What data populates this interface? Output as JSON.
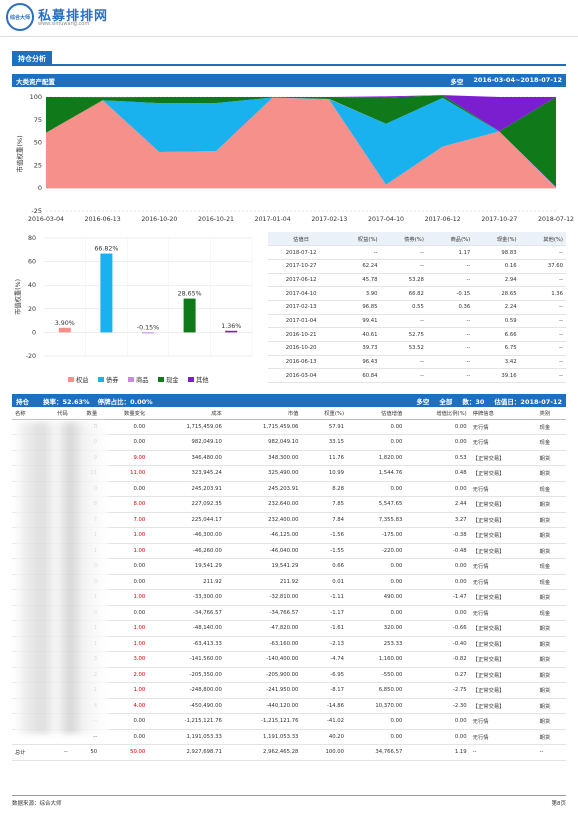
{
  "header": {
    "logo_text": "综合大师",
    "title": "私募排排网",
    "url": "www.simuwang.com"
  },
  "tab": {
    "label": "持仓分析"
  },
  "alloc": {
    "title": "大类资产配置",
    "mode": "多空",
    "range": "2016-03-04~2018-07-12"
  },
  "colors": {
    "equity": "#f5908a",
    "bond": "#1ab1ef",
    "commodity": "#c98be0",
    "cash": "#107a1a",
    "other": "#7a1ed0",
    "brand": "#1f6fbf"
  },
  "chart_data": [
    {
      "type": "area",
      "stacked": true,
      "x": [
        "2016-03-04",
        "2016-06-13",
        "2016-10-20",
        "2016-10-21",
        "2017-01-04",
        "2017-02-13",
        "2017-04-10",
        "2017-06-12",
        "2017-10-27",
        "2018-07-12"
      ],
      "series": [
        {
          "name": "权益",
          "values": [
            60.84,
            96.43,
            39.73,
            40.61,
            99.41,
            96.85,
            3.9,
            45.78,
            62.24,
            0
          ]
        },
        {
          "name": "债券",
          "values": [
            0,
            0,
            53.52,
            52.75,
            0,
            0.55,
            66.82,
            53.28,
            0,
            0
          ]
        },
        {
          "name": "商品",
          "values": [
            0,
            0,
            0,
            0,
            0,
            0.36,
            -0.15,
            0,
            0,
            1.17
          ]
        },
        {
          "name": "现金",
          "values": [
            39.16,
            3.42,
            6.75,
            6.66,
            0.59,
            2.24,
            28.65,
            2.94,
            0.16,
            98.83
          ]
        },
        {
          "name": "其他",
          "values": [
            0,
            0,
            0,
            0,
            0,
            0,
            1.36,
            0,
            37.6,
            0
          ]
        }
      ],
      "ylabel": "市值权重(%)",
      "ylim": [
        -25,
        100
      ],
      "yticks": [
        -25,
        0,
        25,
        50,
        75,
        100
      ]
    },
    {
      "type": "bar",
      "categories": [
        "权益",
        "债券",
        "商品",
        "现金",
        "其他"
      ],
      "values": [
        3.9,
        66.82,
        -0.15,
        28.65,
        1.36
      ],
      "labels": [
        "3.90%",
        "66.82%",
        "-0.15%",
        "28.65%",
        "1.36%"
      ],
      "ylabel": "市值权重(%)",
      "ylim": [
        -20,
        80
      ],
      "yticks": [
        -20,
        0,
        20,
        40,
        60,
        80
      ],
      "legend": "bottom"
    }
  ],
  "alloc_table": {
    "headers": [
      "估值日",
      "权益(%)",
      "债券(%)",
      "商品(%)",
      "现金(%)",
      "其他(%)"
    ],
    "rows": [
      [
        "2018-07-12",
        "--",
        "--",
        "1.17",
        "98.83",
        "--"
      ],
      [
        "2017-10-27",
        "62.24",
        "--",
        "--",
        "0.16",
        "37.60"
      ],
      [
        "2017-06-12",
        "45.78",
        "53.28",
        "--",
        "2.94",
        "--"
      ],
      [
        "2017-04-10",
        "3.90",
        "66.82",
        "-0.15",
        "28.65",
        "1.36"
      ],
      [
        "2017-02-13",
        "96.85",
        "0.55",
        "0.36",
        "2.24",
        "--"
      ],
      [
        "2017-01-04",
        "99.41",
        "--",
        "--",
        "0.59",
        "--"
      ],
      [
        "2016-10-21",
        "40.61",
        "52.75",
        "--",
        "6.66",
        "--"
      ],
      [
        "2016-10-20",
        "39.73",
        "53.52",
        "--",
        "6.75",
        "--"
      ],
      [
        "2016-06-13",
        "96.43",
        "--",
        "--",
        "3.42",
        "--"
      ],
      [
        "2016-03-04",
        "60.84",
        "--",
        "--",
        "39.16",
        "--"
      ]
    ]
  },
  "holdings": {
    "title": "持仓",
    "turnover": "换率：52.63%",
    "suspended": "停牌占比：0.00%",
    "mode": "多空",
    "scope": "全部",
    "count": "数：30",
    "date": "估值日：2018-07-12",
    "headers": [
      "名称",
      "代码",
      "数量",
      "数量变化",
      "成本",
      "市值",
      "权重(%)",
      "估值增值",
      "增值比例(%)",
      "停牌信息",
      "类别"
    ],
    "rows": [
      [
        "",
        "",
        "0",
        "0.00",
        "1,715,459.06",
        "1,715,459.06",
        "57.91",
        "0.00",
        "0.00",
        "无行情",
        "现金"
      ],
      [
        "",
        "",
        "0",
        "0.00",
        "982,049.10",
        "982,049.10",
        "33.15",
        "0.00",
        "0.00",
        "无行情",
        "现金"
      ],
      [
        "",
        "",
        "9",
        "9.00",
        "346,480.00",
        "348,300.00",
        "11.76",
        "1,820.00",
        "0.53",
        "【正常交易】",
        "期货"
      ],
      [
        "",
        "",
        "11",
        "11.00",
        "323,945.24",
        "325,490.00",
        "10.99",
        "1,544.76",
        "0.48",
        "【正常交易】",
        "期货"
      ],
      [
        "",
        "",
        "0",
        "0.00",
        "245,203.91",
        "245,203.91",
        "8.28",
        "0.00",
        "0.00",
        "无行情",
        "现金"
      ],
      [
        "",
        "",
        "8",
        "8.00",
        "227,092.35",
        "232,640.00",
        "7.85",
        "5,547.65",
        "2.44",
        "【正常交易】",
        "期货"
      ],
      [
        "",
        "",
        "7",
        "7.00",
        "225,044.17",
        "232,400.00",
        "7.84",
        "7,355.83",
        "3.27",
        "【正常交易】",
        "期货"
      ],
      [
        "",
        "",
        "1",
        "1.00",
        "-46,300.00",
        "-46,125.00",
        "-1.56",
        "-175.00",
        "-0.38",
        "【正常交易】",
        "期货"
      ],
      [
        "",
        "",
        "1",
        "1.00",
        "-46,260.00",
        "-46,040.00",
        "-1.55",
        "-220.00",
        "-0.48",
        "【正常交易】",
        "期货"
      ],
      [
        "",
        "",
        "0",
        "0.00",
        "19,541.29",
        "19,541.29",
        "0.66",
        "0.00",
        "0.00",
        "无行情",
        "现金"
      ],
      [
        "",
        "",
        "0",
        "0.00",
        "211.92",
        "211.92",
        "0.01",
        "0.00",
        "0.00",
        "无行情",
        "现金"
      ],
      [
        "",
        "",
        "1",
        "1.00",
        "-33,300.00",
        "-32,810.00",
        "-1.11",
        "490.00",
        "-1.47",
        "【正常交易】",
        "期货"
      ],
      [
        "",
        "",
        "0",
        "0.00",
        "-34,766.57",
        "-34,766.57",
        "-1.17",
        "0.00",
        "0.00",
        "无行情",
        "现金"
      ],
      [
        "",
        "",
        "1",
        "1.00",
        "-48,140.00",
        "-47,820.00",
        "-1.61",
        "320.00",
        "-0.66",
        "【正常交易】",
        "期货"
      ],
      [
        "",
        "",
        "1",
        "1.00",
        "-63,413.33",
        "-63,160.00",
        "-2.13",
        "253.33",
        "-0.40",
        "【正常交易】",
        "期货"
      ],
      [
        "",
        "",
        "3",
        "3.00",
        "-141,560.00",
        "-140,400.00",
        "-4.74",
        "1,160.00",
        "-0.82",
        "【正常交易】",
        "期货"
      ],
      [
        "",
        "",
        "2",
        "2.00",
        "-205,350.00",
        "-205,900.00",
        "-6.95",
        "-550.00",
        "0.27",
        "【正常交易】",
        "期货"
      ],
      [
        "",
        "",
        "1",
        "1.00",
        "-248,800.00",
        "-241,950.00",
        "-8.17",
        "6,850.00",
        "-2.75",
        "【正常交易】",
        "期货"
      ],
      [
        "",
        "",
        "4",
        "4.00",
        "-450,490.00",
        "-440,120.00",
        "-14.86",
        "10,370.00",
        "-2.30",
        "【正常交易】",
        "期货"
      ],
      [
        "",
        "",
        "--",
        "0.00",
        "-1,215,121.76",
        "-1,215,121.76",
        "-41.02",
        "0.00",
        "0.00",
        "无行情",
        "期货"
      ],
      [
        "",
        "",
        "--",
        "0.00",
        "1,191,053.33",
        "1,191,053.33",
        "40.20",
        "0.00",
        "0.00",
        "无行情",
        "期货"
      ]
    ],
    "total": [
      "总计",
      "--",
      "50",
      "50.00",
      "2,927,698.71",
      "2,962,465.28",
      "100.00",
      "34,766.57",
      "1.19",
      "--",
      "--"
    ]
  },
  "footer": {
    "source": "数据来源：综合大师",
    "page": "第8页"
  }
}
